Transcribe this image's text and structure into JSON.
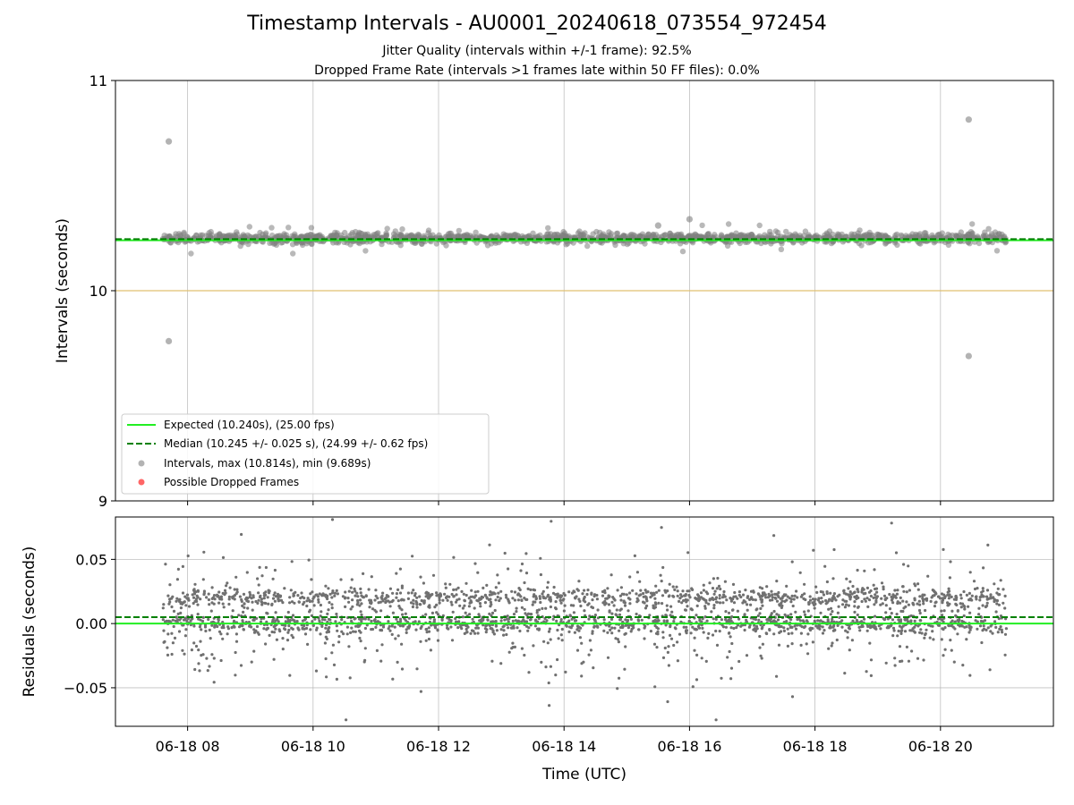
{
  "chart_data": [
    {
      "type": "scatter",
      "title": "Timestamp Intervals - AU0001_20240618_073554_972454",
      "subtitle_lines": [
        "Jitter Quality (intervals within +/-1 frame): 92.5%",
        "Dropped Frame Rate (intervals >1 frames late within 50 FF files): 0.0%"
      ],
      "ylabel": "Intervals (seconds)",
      "ylim": [
        9,
        11
      ],
      "yticks": [
        "9",
        "10",
        "11"
      ],
      "xlim_hours": [
        6.85,
        21.8
      ],
      "reference_line_y": 10.0,
      "lines": [
        {
          "name": "Expected (10.240s), (25.00 fps)",
          "y": 10.24,
          "color": "#22ee22",
          "style": "solid"
        },
        {
          "name": "Median (10.245 +/- 0.025 s), (24.99 +/- 0.62 fps)",
          "y": 10.245,
          "color": "#008000",
          "style": "dashed"
        }
      ],
      "series": [
        {
          "name": "Intervals, max (10.814s), min (9.689s)",
          "color": "#808080",
          "x_range_hours": [
            7.6,
            21.05
          ],
          "center": 10.25,
          "spread": 0.03,
          "outliers": [
            {
              "x": "06-18 07:42",
              "y": 10.71
            },
            {
              "x": "06-18 07:42",
              "y": 9.76
            },
            {
              "x": "06-18 20:27",
              "y": 10.814
            },
            {
              "x": "06-18 20:27",
              "y": 9.689
            },
            {
              "x": "06-18 16:00",
              "y": 10.34
            },
            {
              "x": "06-18 15:30",
              "y": 10.31
            }
          ]
        },
        {
          "name": "Possible Dropped Frames",
          "color": "#ff5555",
          "values": []
        }
      ],
      "legend_position": "lower-left",
      "grid": true
    },
    {
      "type": "scatter",
      "ylabel": "Residuals (seconds)",
      "xlabel": "Time (UTC)",
      "ylim": [
        -0.08,
        0.083
      ],
      "yticks": [
        "−0.05",
        "0.00",
        "0.05"
      ],
      "ytick_values": [
        -0.05,
        0,
        0.05
      ],
      "xlim_hours": [
        6.85,
        21.8
      ],
      "xticks": [
        "06-18 08",
        "06-18 10",
        "06-18 12",
        "06-18 14",
        "06-18 16",
        "06-18 18",
        "06-18 20"
      ],
      "xtick_hours": [
        8,
        10,
        12,
        14,
        16,
        18,
        20
      ],
      "lines": [
        {
          "y": 0.0,
          "color": "#22ee22",
          "style": "solid"
        },
        {
          "y": 0.005,
          "color": "#008000",
          "style": "dashed"
        }
      ],
      "residual_bands": [
        0.0,
        0.02
      ],
      "grid": true
    }
  ]
}
